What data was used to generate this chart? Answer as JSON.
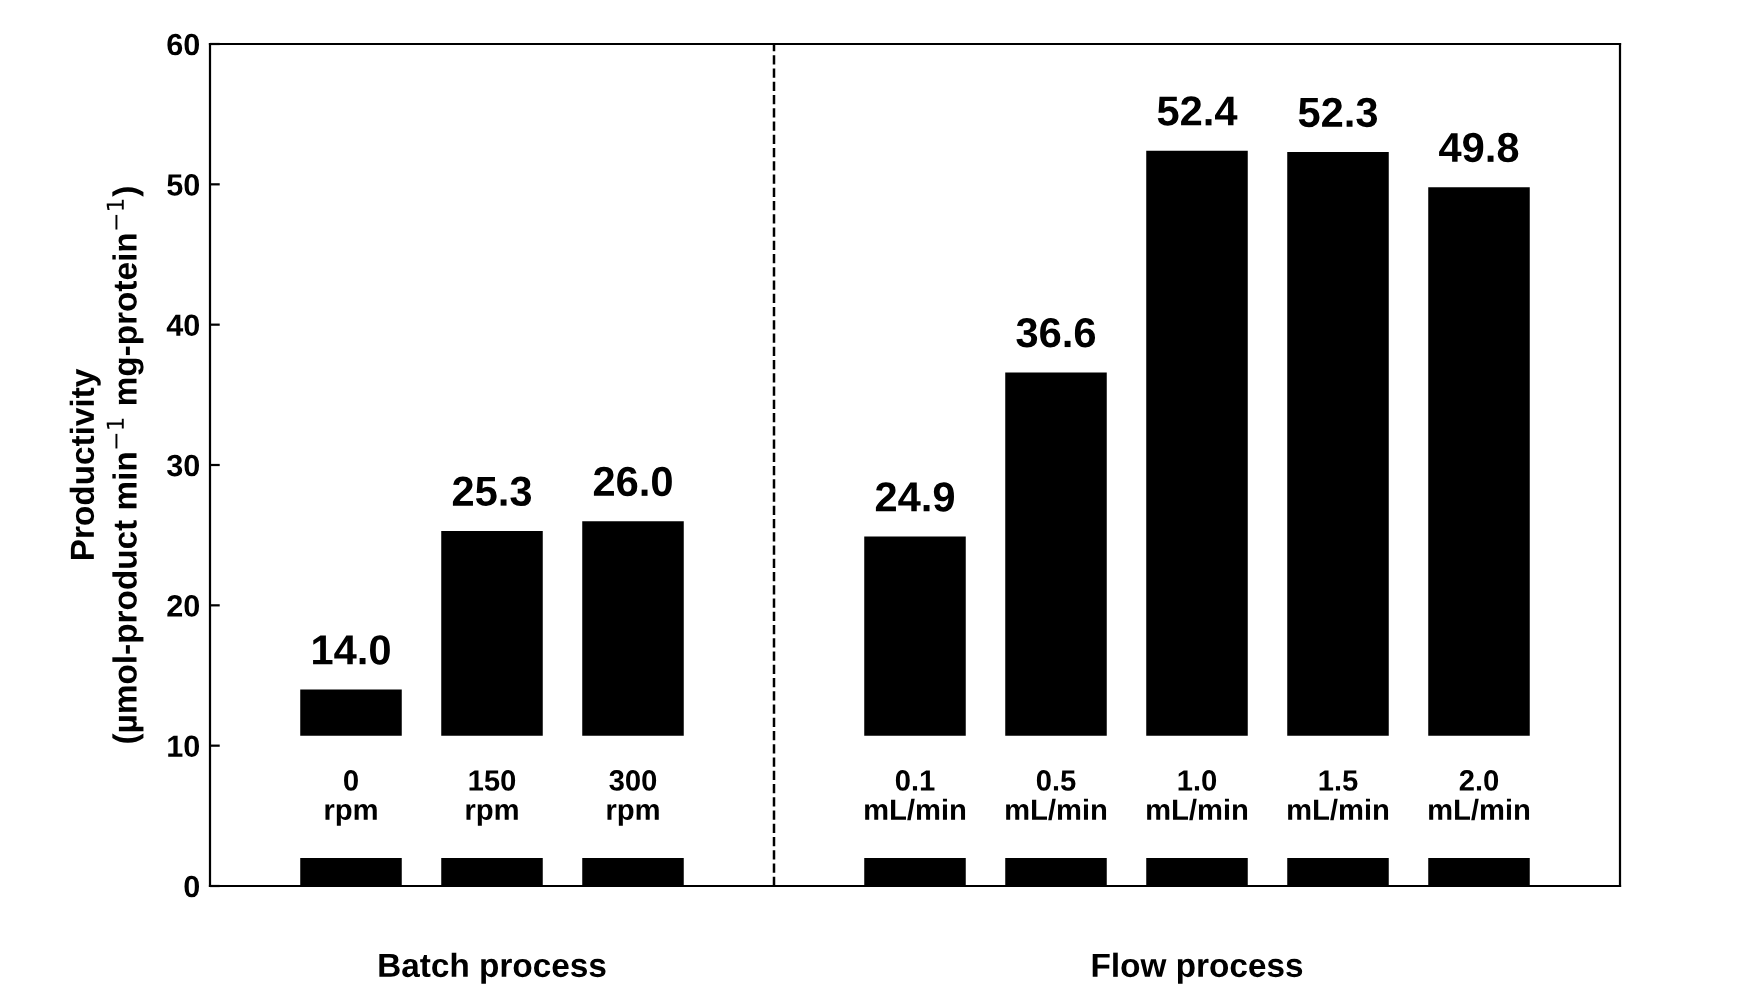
{
  "chart_data": {
    "type": "bar",
    "ylabel": "Productivity\n(µmol-product min$^{−1}$ mg-protein$^{−1}$)",
    "categories": [
      "0\nrpm",
      "150\nrpm",
      "300\nrpm",
      null,
      "0.1\nmL/min",
      "0.5\nmL/min",
      "1.0\nmL/min",
      "1.5\nmL/min",
      "2.0\nmL/min"
    ],
    "values": [
      14.0,
      25.3,
      26.0,
      null,
      24.9,
      36.6,
      52.4,
      52.3,
      49.8
    ],
    "value_labels": [
      "14.0",
      "25.3",
      "26.0",
      null,
      "24.9",
      "36.6",
      "52.4",
      "52.3",
      "49.8"
    ],
    "color": "#000000",
    "ylim": [
      0,
      60
    ],
    "yticks": [
      0,
      10,
      20,
      30,
      40,
      50,
      60
    ],
    "annotations": [
      "Batch process",
      "Flow process"
    ]
  }
}
